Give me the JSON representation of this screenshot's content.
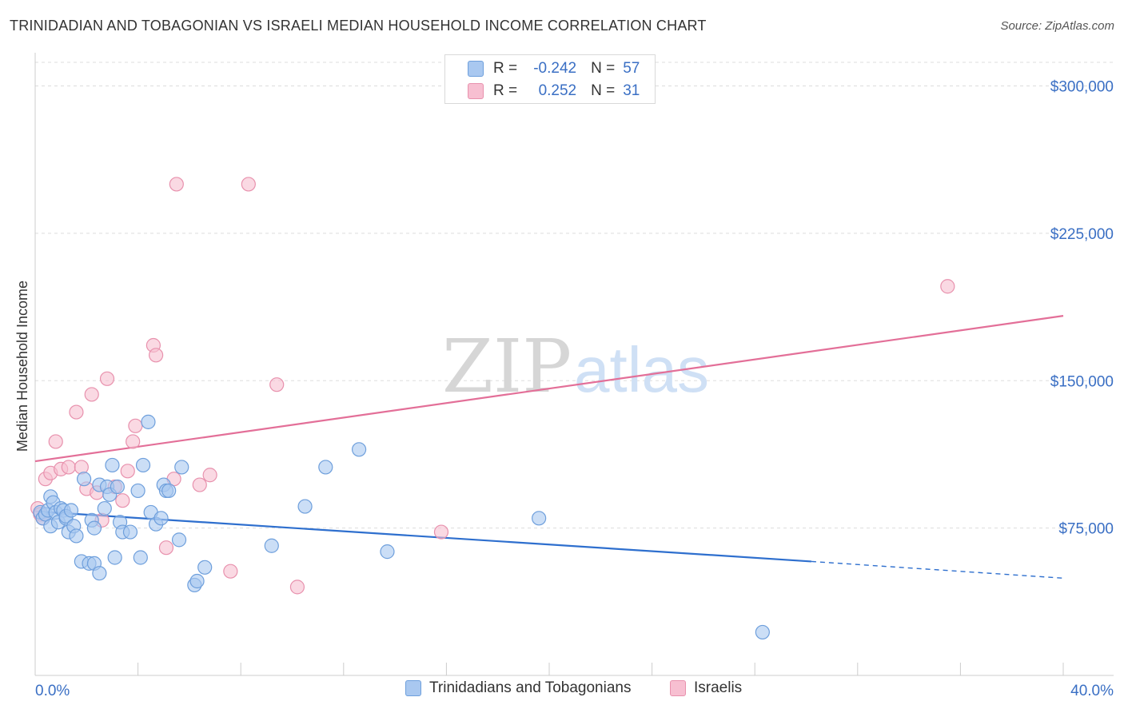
{
  "title": "TRINIDADIAN AND TOBAGONIAN VS ISRAELI MEDIAN HOUSEHOLD INCOME CORRELATION CHART",
  "source": "Source: ZipAtlas.com",
  "watermark": {
    "zip": "ZIP",
    "atlas": "atlas"
  },
  "legend": {
    "rows": [
      {
        "r_label": "R =",
        "r_value": "-0.242",
        "n_label": "N =",
        "n_value": "57"
      },
      {
        "r_label": "R =",
        "r_value": "0.252",
        "n_label": "N =",
        "n_value": "31"
      }
    ]
  },
  "colors": {
    "blue_fill": "#a9c8f0",
    "blue_stroke": "#6e9fdc",
    "blue_line": "#2e6fce",
    "pink_fill": "#f7bfd1",
    "pink_stroke": "#e891ad",
    "pink_line": "#e36f98",
    "axis_text": "#3a6fc4",
    "grid": "#dddddd"
  },
  "chart_data": {
    "type": "scatter",
    "title": "TRINIDADIAN AND TOBAGONIAN VS ISRAELI MEDIAN HOUSEHOLD INCOME CORRELATION CHART",
    "xlabel": "",
    "ylabel": "Median Household Income",
    "xlim": [
      0,
      40
    ],
    "ylim": [
      0,
      312000
    ],
    "x_tick_labels": [
      "0.0%",
      "40.0%"
    ],
    "y_ticks": [
      75000,
      150000,
      225000,
      300000
    ],
    "y_tick_labels": [
      "$75,000",
      "$150,000",
      "$225,000",
      "$300,000"
    ],
    "grid": true,
    "series": [
      {
        "name": "Trinidadians and Tobagonians",
        "color": "blue",
        "r": -0.242,
        "n": 57,
        "trend": {
          "x_start": 0,
          "y_start": 83500,
          "x_solid_end": 30.2,
          "y_solid_end": 58000,
          "x_end": 40,
          "y_end": 49500
        },
        "points": [
          [
            0.2,
            83000
          ],
          [
            0.3,
            80000
          ],
          [
            0.4,
            82000
          ],
          [
            0.5,
            84000
          ],
          [
            0.6,
            76000
          ],
          [
            0.6,
            91000
          ],
          [
            0.7,
            88000
          ],
          [
            0.8,
            83000
          ],
          [
            0.9,
            78000
          ],
          [
            1.0,
            85000
          ],
          [
            1.1,
            84000
          ],
          [
            1.2,
            80000
          ],
          [
            1.2,
            81000
          ],
          [
            1.3,
            73000
          ],
          [
            1.4,
            84000
          ],
          [
            1.5,
            76000
          ],
          [
            1.6,
            71000
          ],
          [
            1.8,
            58000
          ],
          [
            1.9,
            100000
          ],
          [
            2.1,
            57000
          ],
          [
            2.2,
            79000
          ],
          [
            2.3,
            57000
          ],
          [
            2.3,
            75000
          ],
          [
            2.5,
            52000
          ],
          [
            2.5,
            97000
          ],
          [
            2.7,
            85000
          ],
          [
            2.8,
            96000
          ],
          [
            2.9,
            92000
          ],
          [
            3.0,
            107000
          ],
          [
            3.1,
            60000
          ],
          [
            3.2,
            96000
          ],
          [
            3.3,
            78000
          ],
          [
            3.4,
            73000
          ],
          [
            3.7,
            73000
          ],
          [
            4.0,
            94000
          ],
          [
            4.1,
            60000
          ],
          [
            4.2,
            107000
          ],
          [
            4.4,
            129000
          ],
          [
            4.5,
            83000
          ],
          [
            4.7,
            77000
          ],
          [
            4.9,
            80000
          ],
          [
            5.0,
            97000
          ],
          [
            5.1,
            94000
          ],
          [
            5.2,
            94000
          ],
          [
            5.6,
            69000
          ],
          [
            5.7,
            106000
          ],
          [
            6.2,
            46000
          ],
          [
            6.3,
            48000
          ],
          [
            6.6,
            55000
          ],
          [
            9.2,
            66000
          ],
          [
            10.5,
            86000
          ],
          [
            11.3,
            106000
          ],
          [
            12.6,
            115000
          ],
          [
            13.7,
            63000
          ],
          [
            19.6,
            80000
          ],
          [
            28.3,
            22000
          ]
        ]
      },
      {
        "name": "Israelis",
        "color": "pink",
        "r": 0.252,
        "n": 31,
        "trend": {
          "x_start": 0,
          "y_start": 109000,
          "x_end": 40,
          "y_end": 183000
        },
        "points": [
          [
            0.1,
            85000
          ],
          [
            0.2,
            82000
          ],
          [
            0.3,
            80000
          ],
          [
            0.4,
            100000
          ],
          [
            0.6,
            103000
          ],
          [
            0.8,
            119000
          ],
          [
            1.0,
            105000
          ],
          [
            1.3,
            106000
          ],
          [
            1.6,
            134000
          ],
          [
            1.8,
            106000
          ],
          [
            2.0,
            95000
          ],
          [
            2.2,
            143000
          ],
          [
            2.4,
            93000
          ],
          [
            2.6,
            79000
          ],
          [
            2.8,
            151000
          ],
          [
            3.1,
            96000
          ],
          [
            3.4,
            89000
          ],
          [
            3.6,
            104000
          ],
          [
            3.8,
            119000
          ],
          [
            3.9,
            127000
          ],
          [
            4.6,
            168000
          ],
          [
            4.7,
            163000
          ],
          [
            5.1,
            65000
          ],
          [
            5.4,
            100000
          ],
          [
            5.5,
            250000
          ],
          [
            6.4,
            97000
          ],
          [
            6.8,
            102000
          ],
          [
            7.6,
            53000
          ],
          [
            8.3,
            250000
          ],
          [
            9.4,
            148000
          ],
          [
            10.2,
            45000
          ],
          [
            15.8,
            73000
          ],
          [
            35.5,
            198000
          ]
        ]
      }
    ]
  }
}
